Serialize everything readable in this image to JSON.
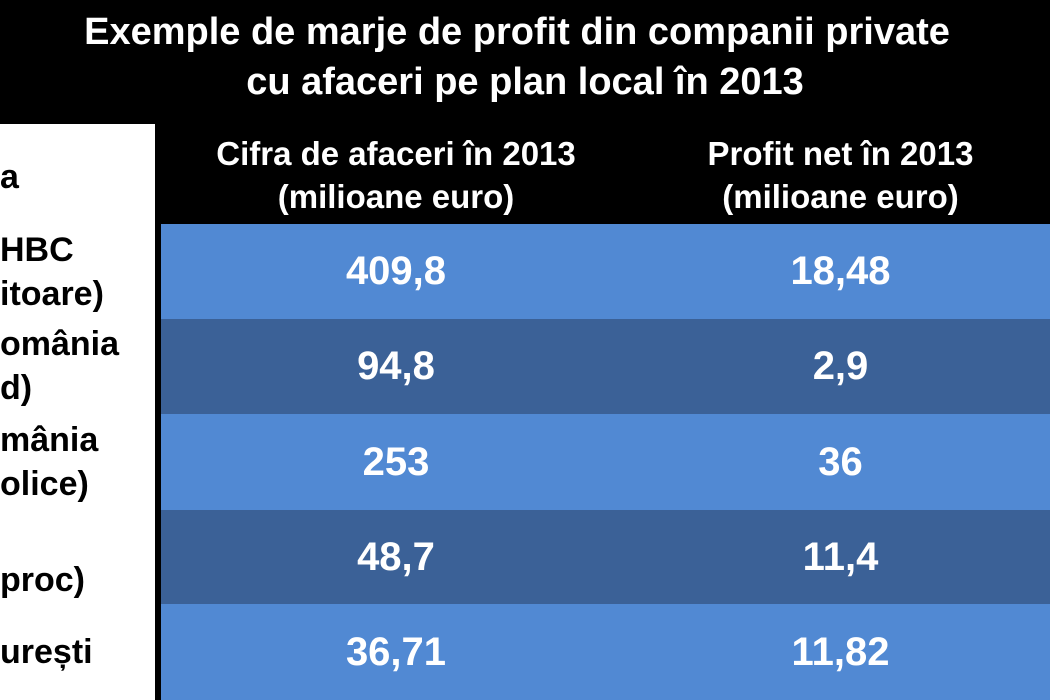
{
  "title": {
    "line1": "Exemple de marje de profit din companii private",
    "line2": "cu afaceri pe plan local în 2013"
  },
  "chart_data": {
    "type": "table",
    "columns": [
      {
        "header_line1": "",
        "header_line2": "a"
      },
      {
        "header_line1": "Cifra de afaceri în 2013",
        "header_line2": "(milioane euro)"
      },
      {
        "header_line1": "Profit net în 2013",
        "header_line2": "(milioane euro)"
      }
    ],
    "rows": [
      {
        "label_line1": "HBC",
        "label_line2": "itoare)",
        "turnover": "409,8",
        "net_profit": "18,48"
      },
      {
        "label_line1": "omânia",
        "label_line2": "d)",
        "turnover": "94,8",
        "net_profit": "2,9"
      },
      {
        "label_line1": "mânia",
        "label_line2": "olice)",
        "turnover": "253",
        "net_profit": "36"
      },
      {
        "label_line1": "",
        "label_line2": "proc)",
        "turnover": "48,7",
        "net_profit": "11,4"
      },
      {
        "label_line1": "urești",
        "label_line2": "",
        "turnover": "36,71",
        "net_profit": "11,82"
      }
    ]
  },
  "colors": {
    "row_light": "#5189d3",
    "row_dark": "#3b6197",
    "header_bg": "#000000",
    "stub_bg": "#ffffff"
  }
}
